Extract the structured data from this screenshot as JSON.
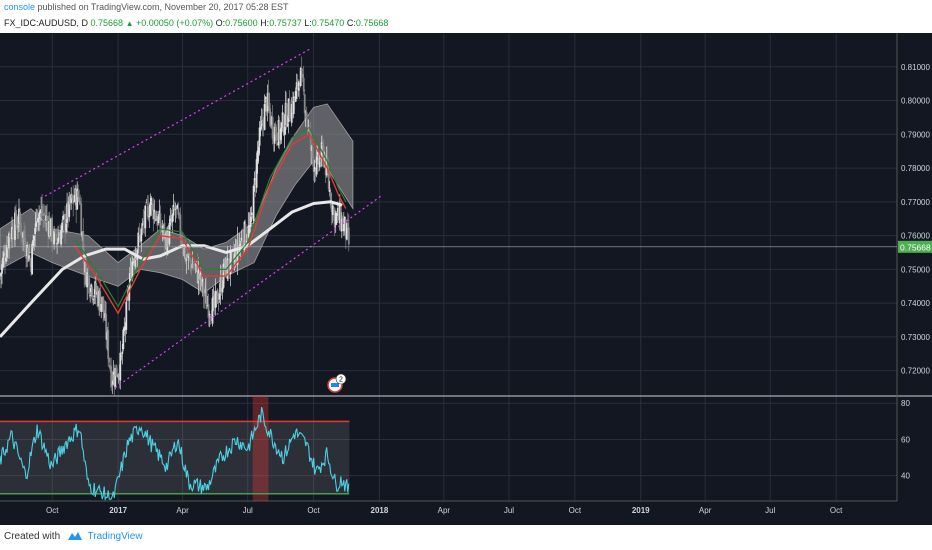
{
  "header": {
    "user": "console",
    "published": " published on TradingView.com, November 20, 2017 05:28 EST",
    "symbol": "FX_IDC:AUDUSD, D",
    "last": "0.75668",
    "change": "+0.00050 (+0.07%)",
    "o_label": "O:",
    "o_value": "0.75600",
    "h_label": "H:",
    "h_value": "0.75737",
    "l_label": "L:",
    "l_value": "0.75470",
    "c_label": "C:",
    "c_value": "0.75668"
  },
  "footer": {
    "created_with": "Created with",
    "brand": "TradingView"
  },
  "colors": {
    "background": "#131722",
    "grid": "#2a2e39",
    "candle_up": "#e0e0e0",
    "candle_down": "#888888",
    "ema_red": "#e53935",
    "ema_green": "#2e7d32",
    "sma_white": "#e8e8e8",
    "cloud": "#9e9e9e",
    "channel": "#e040fb",
    "rsi_line": "#4dd0e1",
    "rsi_upper": "#e53935",
    "rsi_lower": "#43a047",
    "price_tag": "#4caf50"
  },
  "event_badge": "2",
  "chart_data": [
    {
      "type": "candlestick",
      "title": "",
      "x_tick_labels": [
        "Oct",
        "2017",
        "Apr",
        "Jul",
        "Oct",
        "2018",
        "Apr",
        "Jul",
        "Oct",
        "2019",
        "Apr",
        "Jul",
        "Oct"
      ],
      "y_tick_labels": [
        "0.81000",
        "0.80000",
        "0.79000",
        "0.78000",
        "0.77000",
        "0.76000",
        "0.75000",
        "0.74000",
        "0.73000",
        "0.72000"
      ],
      "ylim": [
        0.7125,
        0.82
      ],
      "last_price": "0.75668",
      "grid": true,
      "close_path": [
        [
          "2016-07-20",
          0.748
        ],
        [
          "2016-08-01",
          0.76
        ],
        [
          "2016-08-15",
          0.765
        ],
        [
          "2016-09-01",
          0.752
        ],
        [
          "2016-09-10",
          0.768
        ],
        [
          "2016-09-25",
          0.764
        ],
        [
          "2016-10-05",
          0.758
        ],
        [
          "2016-10-15",
          0.762
        ],
        [
          "2016-10-28",
          0.77
        ],
        [
          "2016-11-08",
          0.772
        ],
        [
          "2016-11-15",
          0.75
        ],
        [
          "2016-11-25",
          0.745
        ],
        [
          "2016-12-10",
          0.74
        ],
        [
          "2016-12-23",
          0.718
        ],
        [
          "2017-01-05",
          0.722
        ],
        [
          "2017-01-20",
          0.752
        ],
        [
          "2017-02-01",
          0.76
        ],
        [
          "2017-02-15",
          0.77
        ],
        [
          "2017-02-25",
          0.765
        ],
        [
          "2017-03-10",
          0.758
        ],
        [
          "2017-03-22",
          0.768
        ],
        [
          "2017-04-05",
          0.754
        ],
        [
          "2017-04-20",
          0.75
        ],
        [
          "2017-05-05",
          0.74
        ],
        [
          "2017-05-15",
          0.738
        ],
        [
          "2017-05-30",
          0.75
        ],
        [
          "2017-06-10",
          0.752
        ],
        [
          "2017-06-25",
          0.76
        ],
        [
          "2017-07-05",
          0.762
        ],
        [
          "2017-07-15",
          0.785
        ],
        [
          "2017-07-27",
          0.8
        ],
        [
          "2017-08-05",
          0.792
        ],
        [
          "2017-08-15",
          0.79
        ],
        [
          "2017-08-22",
          0.795
        ],
        [
          "2017-09-05",
          0.8
        ],
        [
          "2017-09-12",
          0.808
        ],
        [
          "2017-09-20",
          0.798
        ],
        [
          "2017-09-28",
          0.784
        ],
        [
          "2017-10-05",
          0.78
        ],
        [
          "2017-10-15",
          0.785
        ],
        [
          "2017-10-22",
          0.775
        ],
        [
          "2017-10-30",
          0.766
        ],
        [
          "2017-11-07",
          0.765
        ],
        [
          "2017-11-14",
          0.762
        ],
        [
          "2017-11-20",
          0.7567
        ]
      ],
      "sma_path": [
        [
          "2016-07-20",
          0.73
        ],
        [
          "2016-09-01",
          0.74
        ],
        [
          "2016-10-15",
          0.75
        ],
        [
          "2016-11-15",
          0.754
        ],
        [
          "2016-12-15",
          0.756
        ],
        [
          "2017-01-10",
          0.756
        ],
        [
          "2017-02-05",
          0.753
        ],
        [
          "2017-03-01",
          0.754
        ],
        [
          "2017-04-01",
          0.757
        ],
        [
          "2017-05-01",
          0.757
        ],
        [
          "2017-06-01",
          0.755
        ],
        [
          "2017-07-01",
          0.757
        ],
        [
          "2017-08-01",
          0.762
        ],
        [
          "2017-09-01",
          0.767
        ],
        [
          "2017-10-01",
          0.7695
        ],
        [
          "2017-10-25",
          0.77
        ],
        [
          "2017-11-10",
          0.769
        ]
      ],
      "ema_path": [
        [
          "2016-11-01",
          0.757
        ],
        [
          "2016-12-01",
          0.748
        ],
        [
          "2017-01-01",
          0.737
        ],
        [
          "2017-02-01",
          0.75
        ],
        [
          "2017-03-01",
          0.76
        ],
        [
          "2017-04-01",
          0.759
        ],
        [
          "2017-05-01",
          0.748
        ],
        [
          "2017-06-01",
          0.748
        ],
        [
          "2017-07-01",
          0.756
        ],
        [
          "2017-08-01",
          0.775
        ],
        [
          "2017-09-01",
          0.787
        ],
        [
          "2017-09-25",
          0.79
        ],
        [
          "2017-10-20",
          0.78
        ],
        [
          "2017-11-05",
          0.772
        ],
        [
          "2017-11-15",
          0.768
        ]
      ],
      "cloud_path_upper": [
        [
          "2016-07-20",
          0.762
        ],
        [
          "2016-09-01",
          0.768
        ],
        [
          "2016-10-01",
          0.762
        ],
        [
          "2016-11-20",
          0.76
        ],
        [
          "2017-01-01",
          0.752
        ],
        [
          "2017-02-01",
          0.757
        ],
        [
          "2017-03-01",
          0.762
        ],
        [
          "2017-04-01",
          0.76
        ],
        [
          "2017-05-01",
          0.756
        ],
        [
          "2017-06-01",
          0.758
        ],
        [
          "2017-07-10",
          0.764
        ],
        [
          "2017-08-10",
          0.78
        ],
        [
          "2017-09-05",
          0.79
        ],
        [
          "2017-10-01",
          0.798
        ],
        [
          "2017-10-20",
          0.799
        ],
        [
          "2017-11-25",
          0.788
        ]
      ],
      "cloud_path_lower": [
        [
          "2016-07-20",
          0.75
        ],
        [
          "2016-09-01",
          0.755
        ],
        [
          "2016-10-01",
          0.752
        ],
        [
          "2016-11-20",
          0.748
        ],
        [
          "2017-01-01",
          0.745
        ],
        [
          "2017-02-01",
          0.75
        ],
        [
          "2017-03-01",
          0.749
        ],
        [
          "2017-04-01",
          0.747
        ],
        [
          "2017-05-01",
          0.743
        ],
        [
          "2017-06-01",
          0.748
        ],
        [
          "2017-07-10",
          0.752
        ],
        [
          "2017-08-10",
          0.766
        ],
        [
          "2017-09-05",
          0.775
        ],
        [
          "2017-10-01",
          0.782
        ],
        [
          "2017-10-20",
          0.78
        ],
        [
          "2017-11-25",
          0.768
        ]
      ],
      "channel_upper": [
        [
          "2016-09-15",
          0.771
        ],
        [
          "2017-09-28",
          0.8155
        ]
      ],
      "channel_lower": [
        [
          "2016-12-28",
          0.715
        ],
        [
          "2018-01-05",
          0.772
        ]
      ]
    },
    {
      "type": "line",
      "title": "",
      "y_tick_labels": [
        "80",
        "60",
        "40"
      ],
      "ylim": [
        26,
        84
      ],
      "upper_band": 70,
      "lower_band": 30,
      "overbought_spans": [
        [
          "2017-07-08",
          "2017-07-30"
        ]
      ],
      "rsi_path": [
        [
          "2016-07-20",
          48
        ],
        [
          "2016-08-05",
          62
        ],
        [
          "2016-08-25",
          40
        ],
        [
          "2016-09-10",
          66
        ],
        [
          "2016-09-30",
          45
        ],
        [
          "2016-10-20",
          58
        ],
        [
          "2016-11-08",
          67
        ],
        [
          "2016-11-20",
          35
        ],
        [
          "2016-12-10",
          30
        ],
        [
          "2016-12-25",
          27
        ],
        [
          "2017-01-15",
          58
        ],
        [
          "2017-02-01",
          68
        ],
        [
          "2017-02-20",
          55
        ],
        [
          "2017-03-10",
          45
        ],
        [
          "2017-03-25",
          60
        ],
        [
          "2017-04-10",
          36
        ],
        [
          "2017-05-05",
          33
        ],
        [
          "2017-05-25",
          50
        ],
        [
          "2017-06-15",
          60
        ],
        [
          "2017-07-01",
          55
        ],
        [
          "2017-07-20",
          74
        ],
        [
          "2017-08-05",
          60
        ],
        [
          "2017-08-20",
          50
        ],
        [
          "2017-09-05",
          64
        ],
        [
          "2017-09-20",
          58
        ],
        [
          "2017-10-05",
          42
        ],
        [
          "2017-10-20",
          52
        ],
        [
          "2017-11-01",
          35
        ],
        [
          "2017-11-10",
          38
        ],
        [
          "2017-11-20",
          31
        ]
      ]
    }
  ]
}
